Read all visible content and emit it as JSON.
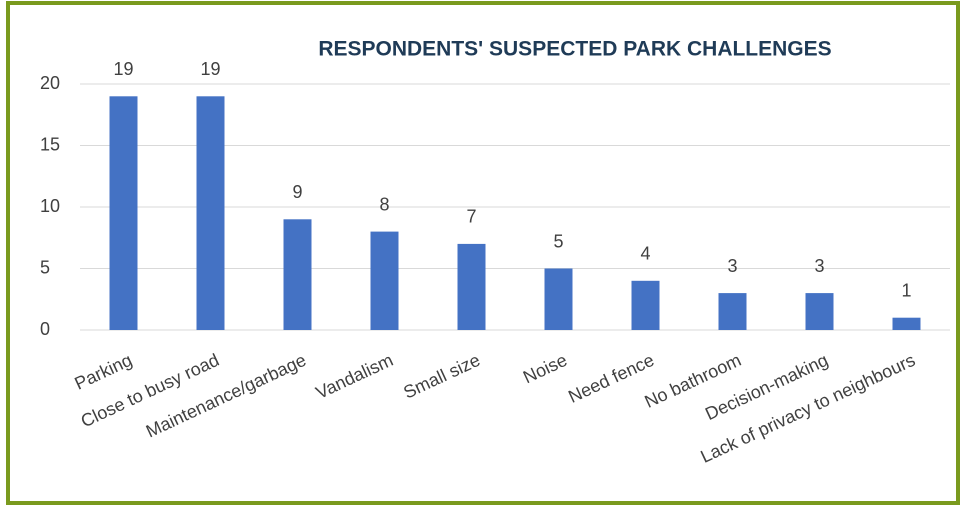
{
  "chart_data": {
    "type": "bar",
    "title": "RESPONDENTS' SUSPECTED PARK CHALLENGES",
    "categories": [
      "Parking",
      "Close to busy road",
      "Maintenance/garbage",
      "Vandalism",
      "Small size",
      "Noise",
      "Need fence",
      "No bathroom",
      "Decision-making",
      "Lack of privacy to neighbours"
    ],
    "values": [
      19,
      19,
      9,
      8,
      7,
      5,
      4,
      3,
      3,
      1
    ],
    "color": "#4472c4",
    "ylim": [
      0,
      20
    ],
    "yticks": [
      0,
      5,
      10,
      15,
      20
    ],
    "grid": true
  }
}
